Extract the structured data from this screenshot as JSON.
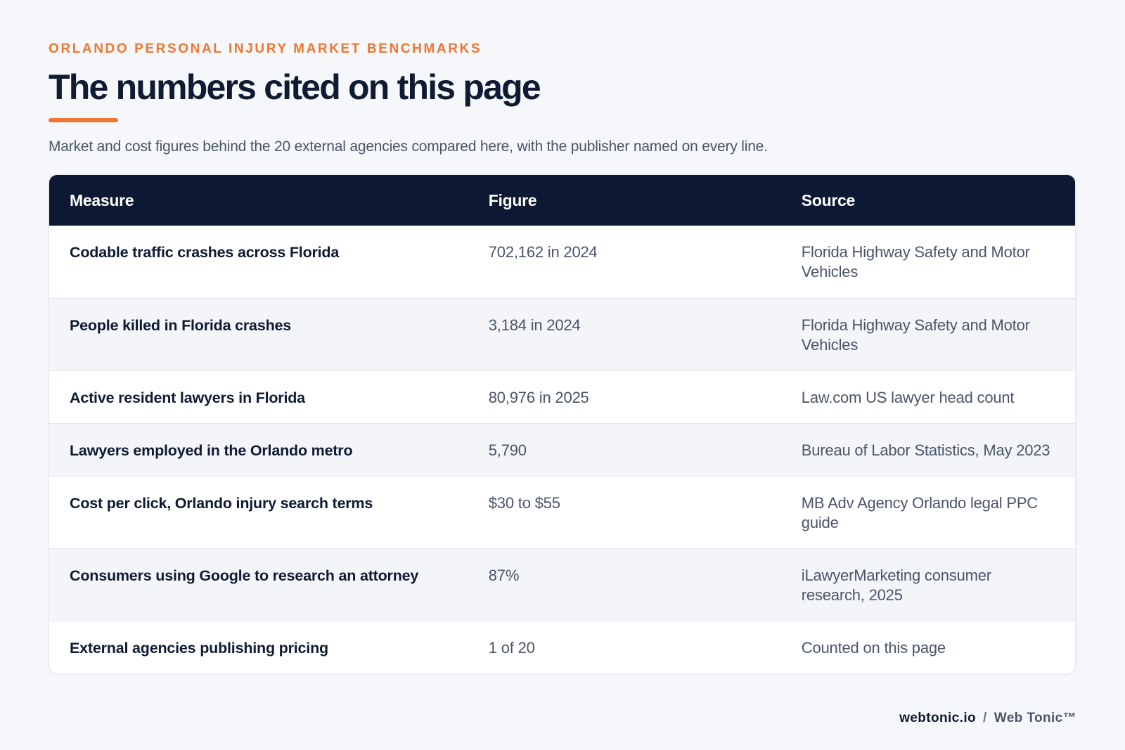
{
  "header": {
    "eyebrow": "ORLANDO PERSONAL INJURY MARKET BENCHMARKS",
    "title": "The numbers cited on this page",
    "subtitle": "Market and cost figures behind the 20 external agencies compared here, with the publisher named on every line."
  },
  "table": {
    "columns": {
      "measure": "Measure",
      "figure": "Figure",
      "source": "Source"
    },
    "rows": [
      {
        "measure": "Codable traffic crashes across Florida",
        "figure": "702,162 in 2024",
        "source": "Florida Highway Safety and Motor Vehicles"
      },
      {
        "measure": "People killed in Florida crashes",
        "figure": "3,184 in 2024",
        "source": "Florida Highway Safety and Motor Vehicles"
      },
      {
        "measure": "Active resident lawyers in Florida",
        "figure": "80,976 in 2025",
        "source": "Law.com US lawyer head count"
      },
      {
        "measure": "Lawyers employed in the Orlando metro",
        "figure": "5,790",
        "source": "Bureau of Labor Statistics, May 2023"
      },
      {
        "measure": "Cost per click, Orlando injury search terms",
        "figure": "$30 to $55",
        "source": "MB Adv Agency Orlando legal PPC guide"
      },
      {
        "measure": "Consumers using Google to research an attorney",
        "figure": "87%",
        "source": "iLawyerMarketing consumer research, 2025"
      },
      {
        "measure": "External agencies publishing pricing",
        "figure": "1 of 20",
        "source": "Counted on this page"
      }
    ]
  },
  "footer": {
    "site": "webtonic.io",
    "separator": "/",
    "brand": "Web Tonic™"
  },
  "colors": {
    "accent": "#f07632",
    "header_bg": "#0d1832",
    "text_dark": "#0f1b33",
    "text_muted": "#4a5568",
    "page_bg": "#f5f7fa"
  }
}
